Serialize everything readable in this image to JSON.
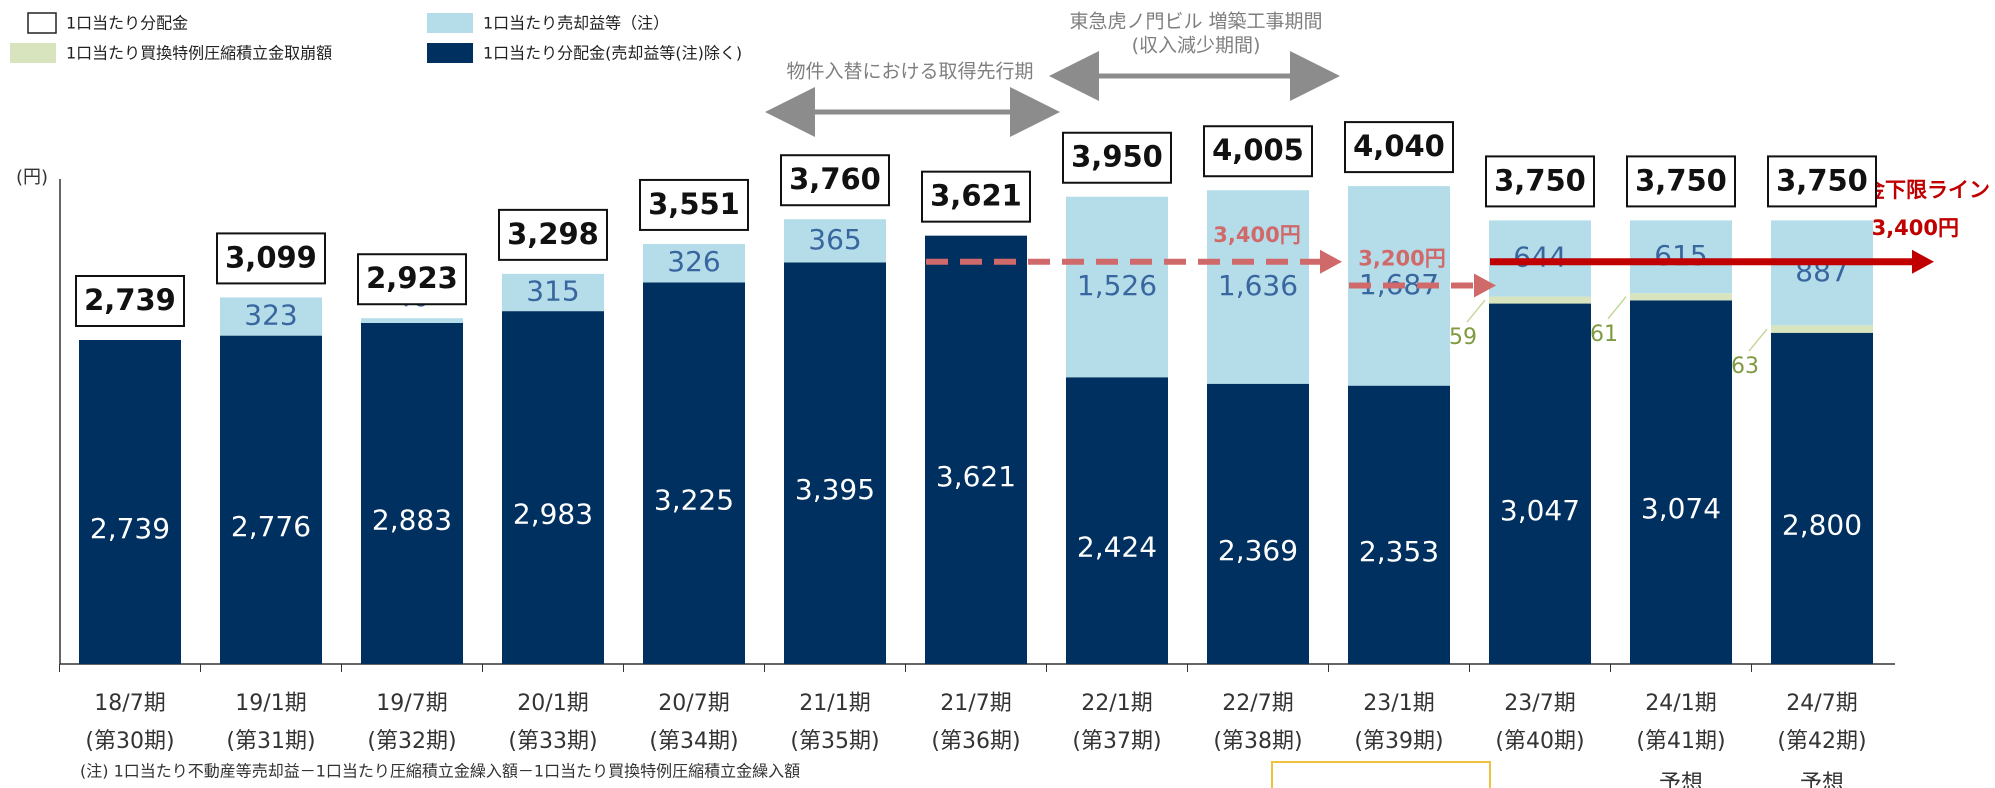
{
  "chart_data": {
    "type": "stacked_bar",
    "y_unit_label": "(円)",
    "categories": [
      "18/7期",
      "19/1期",
      "19/7期",
      "20/1期",
      "20/7期",
      "21/1期",
      "21/7期",
      "22/1期",
      "22/7期",
      "23/1期",
      "23/7期",
      "24/1期",
      "24/7期"
    ],
    "periods": [
      "(第30期)",
      "(第31期)",
      "(第32期)",
      "(第33期)",
      "(第34期)",
      "(第35期)",
      "(第36期)",
      "(第37期)",
      "(第38期)",
      "(第39期)",
      "(第40期)",
      "(第41期)",
      "(第42期)"
    ],
    "ylim": [
      0,
      4100
    ],
    "series": [
      {
        "name": "1口当たり分配金(売却益等(注)除く)",
        "color": "#00305f",
        "text_color": "#ffffff",
        "values": [
          2739,
          2776,
          2883,
          2983,
          3225,
          3395,
          3621,
          2424,
          2369,
          2353,
          3047,
          3074,
          2800
        ],
        "value_labels": [
          "2,739",
          "2,776",
          "2,883",
          "2,983",
          "3,225",
          "3,395",
          "3,621",
          "2,424",
          "2,369",
          "2,353",
          "3,047",
          "3,074",
          "2,800"
        ]
      },
      {
        "name": "1口当たり買換特例圧縮積立金取崩額",
        "color": "#d7e4bd",
        "text_color": "#7f9a40",
        "values": [
          null,
          null,
          null,
          null,
          null,
          null,
          null,
          null,
          null,
          null,
          59,
          61,
          63
        ]
      },
      {
        "name": "1口当たり売却益等（注）",
        "color": "#b4dde9",
        "text_color": "#3a66a0",
        "values": [
          null,
          323,
          40,
          315,
          326,
          365,
          null,
          1526,
          1636,
          1687,
          644,
          615,
          887
        ],
        "value_labels": [
          null,
          "323",
          "40",
          "315",
          "326",
          "365",
          null,
          "1,526",
          "1,636",
          "1,687",
          "644",
          "615",
          "887"
        ]
      }
    ],
    "totals": {
      "name": "1口当たり分配金",
      "values": [
        2739,
        3099,
        2923,
        3298,
        3551,
        3760,
        3621,
        3950,
        4005,
        4040,
        3750,
        3750,
        3750
      ],
      "value_labels": [
        "2,739",
        "3,099",
        "2,923",
        "3,298",
        "3,551",
        "3,760",
        "3,621",
        "3,950",
        "4,005",
        "4,040",
        "3,750",
        "3,750",
        "3,750"
      ]
    },
    "annotations": {
      "acquisition_period": "物件入替における取得先行期",
      "construction_period": "東急虎ノ門ビル 増築工事期間",
      "construction_sub": "(収入減少期間)",
      "floor_line_title": "分配金下限ライン"
    },
    "reference_lines": [
      {
        "label": "3,400円",
        "value": 3400
      },
      {
        "label": "3,200円",
        "value": 3200
      },
      {
        "label": "3,400円",
        "value": 3400,
        "color": "#c00000"
      }
    ],
    "forecast_labels": [
      "予想",
      "予想"
    ],
    "note": "(注) 1口当たり不動産等売却益－1口当たり圧縮積立金繰入額－1口当たり買換特例圧縮積立金繰入額"
  }
}
